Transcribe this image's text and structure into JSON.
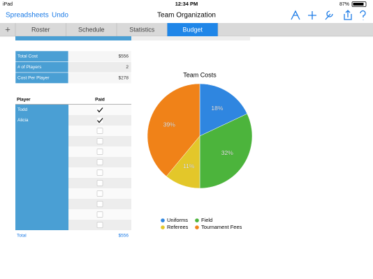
{
  "status_bar": {
    "device": "iPad",
    "time": "12:34 PM",
    "battery": "87%"
  },
  "toolbar": {
    "left": [
      "Spreadsheets",
      "Undo"
    ],
    "title": "Team Organization"
  },
  "tabs": {
    "add": "+",
    "items": [
      "Roster",
      "Schedule",
      "Statistics",
      "Budget"
    ],
    "selected": 3
  },
  "summary": {
    "rows": [
      [
        "Total Cost",
        "$556"
      ],
      [
        "# of Players",
        2
      ],
      [
        "Cost Per Player",
        "$278"
      ]
    ]
  },
  "players": {
    "header": [
      "Player",
      "Paid"
    ],
    "rows": [
      {
        "player": "Todd",
        "paid": true
      },
      {
        "player": "Alicia",
        "paid": true
      },
      {
        "player": null,
        "paid": false
      },
      {
        "player": null,
        "paid": false
      },
      {
        "player": null,
        "paid": false
      },
      {
        "player": null,
        "paid": false
      },
      {
        "player": null,
        "paid": false
      },
      {
        "player": null,
        "paid": false
      },
      {
        "player": null,
        "paid": false
      },
      {
        "player": null,
        "paid": false
      },
      {
        "player": null,
        "paid": false
      },
      {
        "player": null,
        "paid": false
      }
    ],
    "total": [
      "Total",
      "$556"
    ]
  },
  "chart_data": {
    "type": "pie",
    "title": "Team Costs",
    "categories": [
      "Uniforms",
      "Field",
      "Referees",
      "Tournament Fees"
    ],
    "values": [
      18,
      32,
      11,
      39
    ],
    "value_labels": [
      "18%",
      "32%",
      "11%",
      "39%"
    ],
    "colors": [
      "#2f86e0",
      "#4cb43c",
      "#e3c72a",
      "#f08218"
    ]
  }
}
